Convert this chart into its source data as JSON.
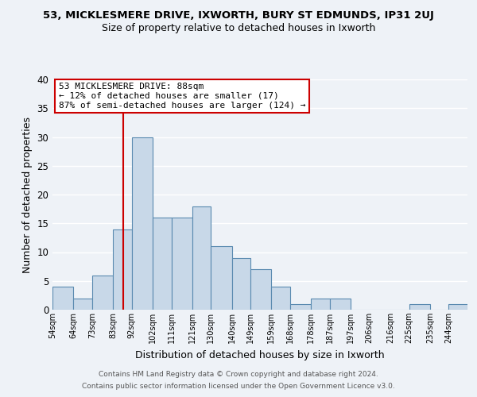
{
  "title": "53, MICKLESMERE DRIVE, IXWORTH, BURY ST EDMUNDS, IP31 2UJ",
  "subtitle": "Size of property relative to detached houses in Ixworth",
  "xlabel": "Distribution of detached houses by size in Ixworth",
  "ylabel": "Number of detached properties",
  "bar_color": "#c8d8e8",
  "bar_edge_color": "#5a8ab0",
  "bin_labels": [
    "54sqm",
    "64sqm",
    "73sqm",
    "83sqm",
    "92sqm",
    "102sqm",
    "111sqm",
    "121sqm",
    "130sqm",
    "140sqm",
    "149sqm",
    "159sqm",
    "168sqm",
    "178sqm",
    "187sqm",
    "197sqm",
    "206sqm",
    "216sqm",
    "225sqm",
    "235sqm",
    "244sqm"
  ],
  "bin_edges": [
    54,
    64,
    73,
    83,
    92,
    102,
    111,
    121,
    130,
    140,
    149,
    159,
    168,
    178,
    187,
    197,
    206,
    216,
    225,
    235,
    244
  ],
  "counts": [
    4,
    2,
    6,
    14,
    30,
    16,
    16,
    18,
    11,
    9,
    7,
    4,
    1,
    2,
    2,
    0,
    0,
    0,
    1,
    0,
    1
  ],
  "ylim": [
    0,
    40
  ],
  "yticks": [
    0,
    5,
    10,
    15,
    20,
    25,
    30,
    35,
    40
  ],
  "property_size": 88,
  "annotation_title": "53 MICKLESMERE DRIVE: 88sqm",
  "annotation_line1": "← 12% of detached houses are smaller (17)",
  "annotation_line2": "87% of semi-detached houses are larger (124) →",
  "annotation_box_color": "#ffffff",
  "annotation_box_edge": "#cc0000",
  "footer1": "Contains HM Land Registry data © Crown copyright and database right 2024.",
  "footer2": "Contains public sector information licensed under the Open Government Licence v3.0.",
  "bg_color": "#eef2f7",
  "grid_color": "#ffffff",
  "title_fontsize": 9.5,
  "subtitle_fontsize": 9
}
